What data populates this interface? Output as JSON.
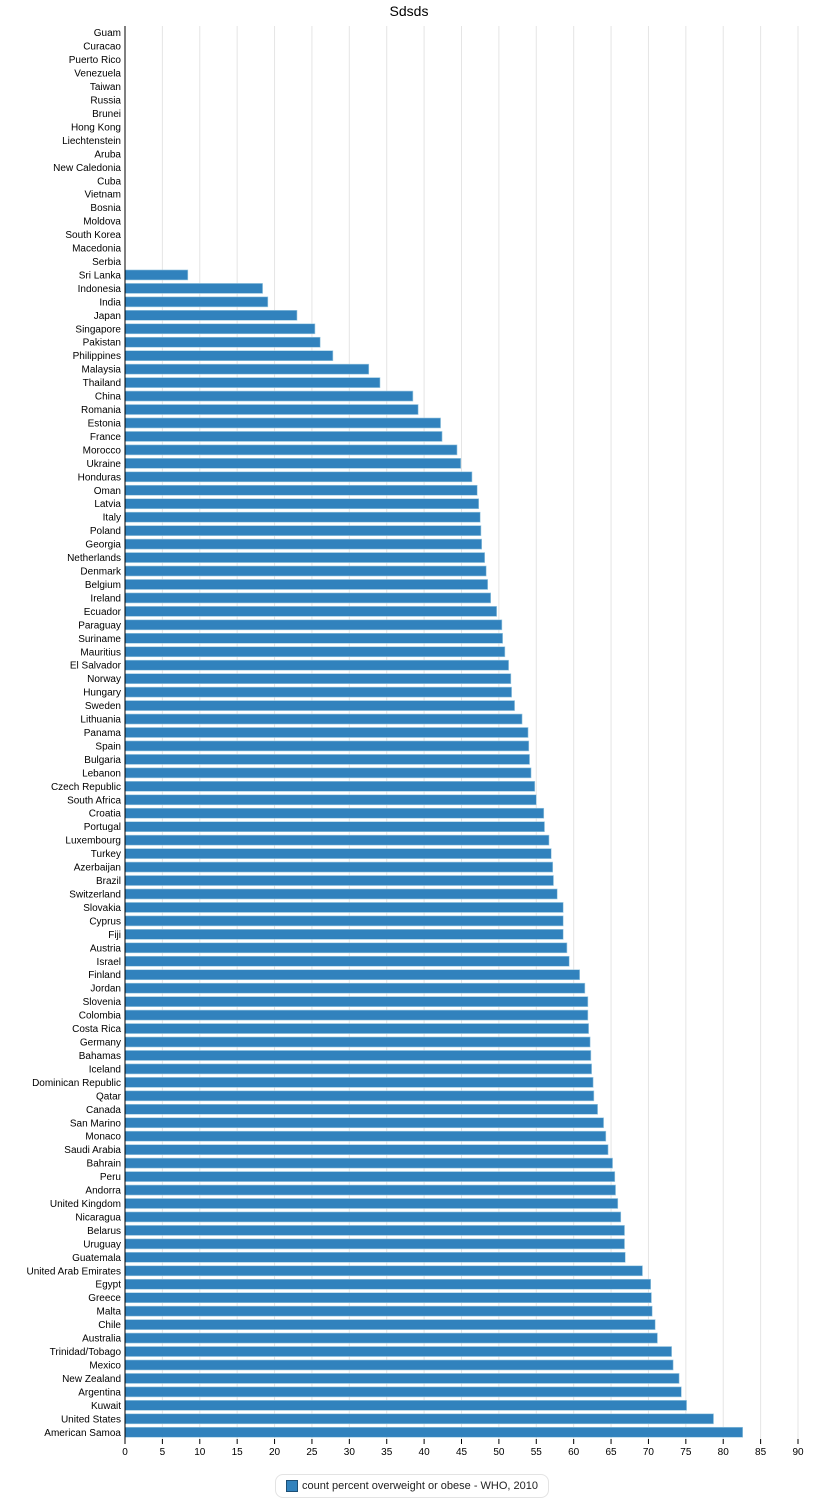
{
  "chart_data": {
    "type": "bar",
    "orientation": "horizontal",
    "title": "Sdsds",
    "xlim": [
      0,
      90
    ],
    "xticks": [
      0,
      5,
      10,
      15,
      20,
      25,
      30,
      35,
      40,
      45,
      50,
      55,
      60,
      65,
      70,
      75,
      80,
      85,
      90
    ],
    "grid": true,
    "legend_placement": "bottom",
    "color": "#3182bd",
    "categories": [
      "Guam",
      "Curacao",
      "Puerto Rico",
      "Venezuela",
      "Taiwan",
      "Russia",
      "Brunei",
      "Hong Kong",
      "Liechtenstein",
      "Aruba",
      "New Caledonia",
      "Cuba",
      "Vietnam",
      "Bosnia",
      "Moldova",
      "South Korea",
      "Macedonia",
      "Serbia",
      "Sri Lanka",
      "Indonesia",
      "India",
      "Japan",
      "Singapore",
      "Pakistan",
      "Philippines",
      "Malaysia",
      "Thailand",
      "China",
      "Romania",
      "Estonia",
      "France",
      "Morocco",
      "Ukraine",
      "Honduras",
      "Oman",
      "Latvia",
      "Italy",
      "Poland",
      "Georgia",
      "Netherlands",
      "Denmark",
      "Belgium",
      "Ireland",
      "Ecuador",
      "Paraguay",
      "Suriname",
      "Mauritius",
      "El Salvador",
      "Norway",
      "Hungary",
      "Sweden",
      "Lithuania",
      "Panama",
      "Spain",
      "Bulgaria",
      "Lebanon",
      "Czech Republic",
      "South Africa",
      "Croatia",
      "Portugal",
      "Luxembourg",
      "Turkey",
      "Azerbaijan",
      "Brazil",
      "Switzerland",
      "Slovakia",
      "Cyprus",
      "Fiji",
      "Austria",
      "Israel",
      "Finland",
      "Jordan",
      "Slovenia",
      "Colombia",
      "Costa Rica",
      "Germany",
      "Bahamas",
      "Iceland",
      "Dominican Republic",
      "Qatar",
      "Canada",
      "San Marino",
      "Monaco",
      "Saudi Arabia",
      "Bahrain",
      "Peru",
      "Andorra",
      "United Kingdom",
      "Nicaragua",
      "Belarus",
      "Uruguay",
      "Guatemala",
      "United Arab Emirates",
      "Egypt",
      "Greece",
      "Malta",
      "Chile",
      "Australia",
      "Trinidad/Tobago",
      "Mexico",
      "New Zealand",
      "Argentina",
      "Kuwait",
      "United States",
      "American Samoa"
    ],
    "series": [
      {
        "name": "count percent overweight or obese - WHO, 2010",
        "values": [
          null,
          null,
          null,
          null,
          null,
          null,
          null,
          null,
          null,
          null,
          null,
          null,
          null,
          null,
          null,
          null,
          null,
          null,
          8.4,
          18.4,
          19.1,
          23.0,
          25.4,
          26.1,
          27.8,
          32.6,
          34.1,
          38.5,
          39.2,
          42.2,
          42.4,
          44.4,
          44.9,
          46.4,
          47.1,
          47.3,
          47.5,
          47.6,
          47.7,
          48.1,
          48.3,
          48.5,
          48.9,
          49.7,
          50.4,
          50.5,
          50.8,
          51.3,
          51.6,
          51.7,
          52.1,
          53.1,
          53.9,
          54.0,
          54.1,
          54.3,
          54.8,
          55.0,
          56.0,
          56.1,
          56.7,
          57.0,
          57.2,
          57.3,
          57.8,
          58.6,
          58.6,
          58.6,
          59.1,
          59.4,
          60.8,
          61.5,
          61.9,
          61.9,
          62.0,
          62.2,
          62.3,
          62.4,
          62.6,
          62.7,
          63.2,
          64.0,
          64.3,
          64.6,
          65.2,
          65.5,
          65.6,
          65.9,
          66.3,
          66.8,
          66.8,
          66.9,
          69.2,
          70.3,
          70.4,
          70.5,
          70.9,
          71.2,
          73.1,
          73.3,
          74.1,
          74.4,
          75.1,
          78.7,
          82.6
        ]
      }
    ]
  }
}
